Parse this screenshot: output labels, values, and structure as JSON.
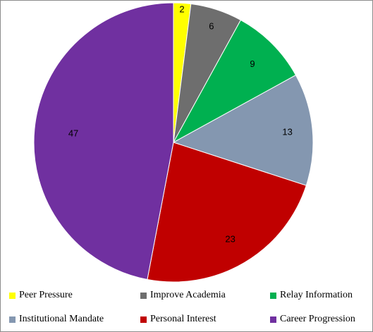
{
  "chart_data": {
    "type": "pie",
    "title": "",
    "categories": [
      "Peer Pressure",
      "Improve Academia",
      "Relay Information",
      "Institutional Mandate",
      "Personal Interest",
      "Career Progression"
    ],
    "values": [
      2,
      6,
      9,
      13,
      23,
      47
    ],
    "colors": [
      "#FFFF00",
      "#6E6E6E",
      "#00B050",
      "#8497B0",
      "#C00000",
      "#7030A0"
    ],
    "data_labels": [
      "2",
      "6",
      "9",
      "13",
      "23",
      "47"
    ],
    "legend": "bottom",
    "start_angle": "12 o'clock",
    "direction": "clockwise"
  }
}
